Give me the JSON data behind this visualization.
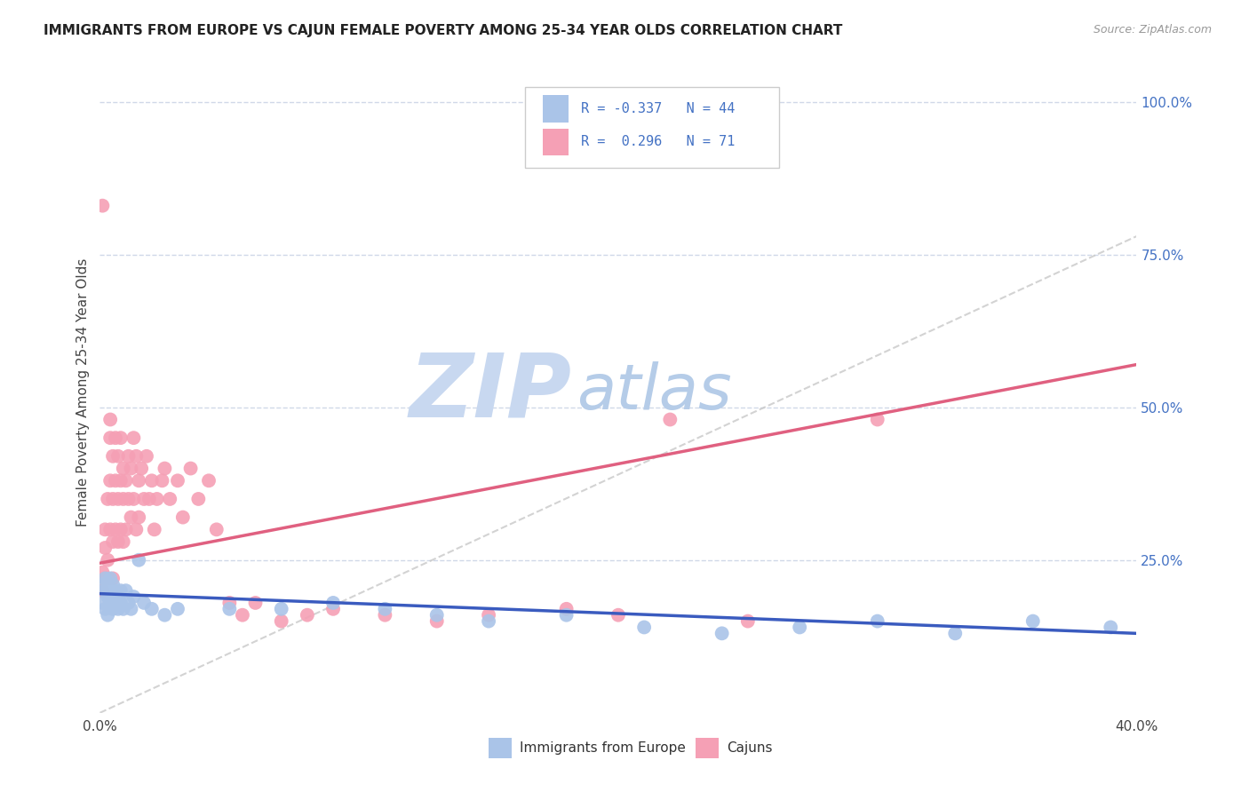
{
  "title": "IMMIGRANTS FROM EUROPE VS CAJUN FEMALE POVERTY AMONG 25-34 YEAR OLDS CORRELATION CHART",
  "source": "Source: ZipAtlas.com",
  "ylabel": "Female Poverty Among 25-34 Year Olds",
  "legend_europe": "Immigrants from Europe",
  "legend_cajun": "Cajuns",
  "r_europe": "-0.337",
  "n_europe": "44",
  "r_cajun": "0.296",
  "n_cajun": "71",
  "color_europe": "#aac4e8",
  "color_cajun": "#f5a0b5",
  "color_europe_line": "#3a5bbf",
  "color_cajun_line": "#e06080",
  "color_diag_line": "#c8c8c8",
  "watermark_zip": "ZIP",
  "watermark_atlas": "atlas",
  "watermark_color_zip": "#c5d8f0",
  "watermark_color_atlas": "#b0c8e8",
  "xlim": [
    0.0,
    0.4
  ],
  "ylim": [
    0.0,
    1.05
  ],
  "background_color": "#ffffff",
  "grid_color": "#d0d8e8",
  "title_fontsize": 11,
  "source_fontsize": 9,
  "europe_x": [
    0.001,
    0.001,
    0.002,
    0.002,
    0.002,
    0.003,
    0.003,
    0.003,
    0.004,
    0.004,
    0.004,
    0.005,
    0.005,
    0.005,
    0.006,
    0.006,
    0.007,
    0.007,
    0.008,
    0.008,
    0.009,
    0.01,
    0.011,
    0.012,
    0.013,
    0.015,
    0.017,
    0.02,
    0.025,
    0.03,
    0.05,
    0.07,
    0.09,
    0.11,
    0.13,
    0.15,
    0.18,
    0.21,
    0.24,
    0.27,
    0.3,
    0.33,
    0.36,
    0.39
  ],
  "europe_y": [
    0.18,
    0.21,
    0.2,
    0.17,
    0.22,
    0.19,
    0.16,
    0.2,
    0.18,
    0.22,
    0.2,
    0.17,
    0.19,
    0.21,
    0.18,
    0.2,
    0.19,
    0.17,
    0.18,
    0.2,
    0.17,
    0.2,
    0.18,
    0.17,
    0.19,
    0.25,
    0.18,
    0.17,
    0.16,
    0.17,
    0.17,
    0.17,
    0.18,
    0.17,
    0.16,
    0.15,
    0.16,
    0.14,
    0.13,
    0.14,
    0.15,
    0.13,
    0.15,
    0.14
  ],
  "cajun_x": [
    0.001,
    0.001,
    0.001,
    0.002,
    0.002,
    0.002,
    0.003,
    0.003,
    0.003,
    0.004,
    0.004,
    0.004,
    0.004,
    0.005,
    0.005,
    0.005,
    0.005,
    0.006,
    0.006,
    0.006,
    0.007,
    0.007,
    0.007,
    0.008,
    0.008,
    0.008,
    0.009,
    0.009,
    0.009,
    0.01,
    0.01,
    0.011,
    0.011,
    0.012,
    0.012,
    0.013,
    0.013,
    0.014,
    0.014,
    0.015,
    0.015,
    0.016,
    0.017,
    0.018,
    0.019,
    0.02,
    0.021,
    0.022,
    0.024,
    0.025,
    0.027,
    0.03,
    0.032,
    0.035,
    0.038,
    0.042,
    0.045,
    0.05,
    0.055,
    0.06,
    0.07,
    0.08,
    0.09,
    0.11,
    0.13,
    0.15,
    0.18,
    0.2,
    0.22,
    0.25,
    0.3
  ],
  "cajun_y": [
    0.83,
    0.23,
    0.2,
    0.22,
    0.27,
    0.3,
    0.25,
    0.35,
    0.22,
    0.3,
    0.38,
    0.45,
    0.48,
    0.42,
    0.35,
    0.28,
    0.22,
    0.38,
    0.45,
    0.3,
    0.42,
    0.35,
    0.28,
    0.45,
    0.38,
    0.3,
    0.4,
    0.35,
    0.28,
    0.38,
    0.3,
    0.42,
    0.35,
    0.4,
    0.32,
    0.45,
    0.35,
    0.42,
    0.3,
    0.38,
    0.32,
    0.4,
    0.35,
    0.42,
    0.35,
    0.38,
    0.3,
    0.35,
    0.38,
    0.4,
    0.35,
    0.38,
    0.32,
    0.4,
    0.35,
    0.38,
    0.3,
    0.18,
    0.16,
    0.18,
    0.15,
    0.16,
    0.17,
    0.16,
    0.15,
    0.16,
    0.17,
    0.16,
    0.48,
    0.15,
    0.48
  ],
  "europe_line_x0": 0.0,
  "europe_line_y0": 0.195,
  "europe_line_x1": 0.4,
  "europe_line_y1": 0.13,
  "cajun_line_x0": 0.0,
  "cajun_line_y0": 0.245,
  "cajun_line_x1": 0.4,
  "cajun_line_y1": 0.57,
  "diag_line_x0": 0.0,
  "diag_line_y0": 0.0,
  "diag_line_x1": 0.4,
  "diag_line_y1": 0.78
}
